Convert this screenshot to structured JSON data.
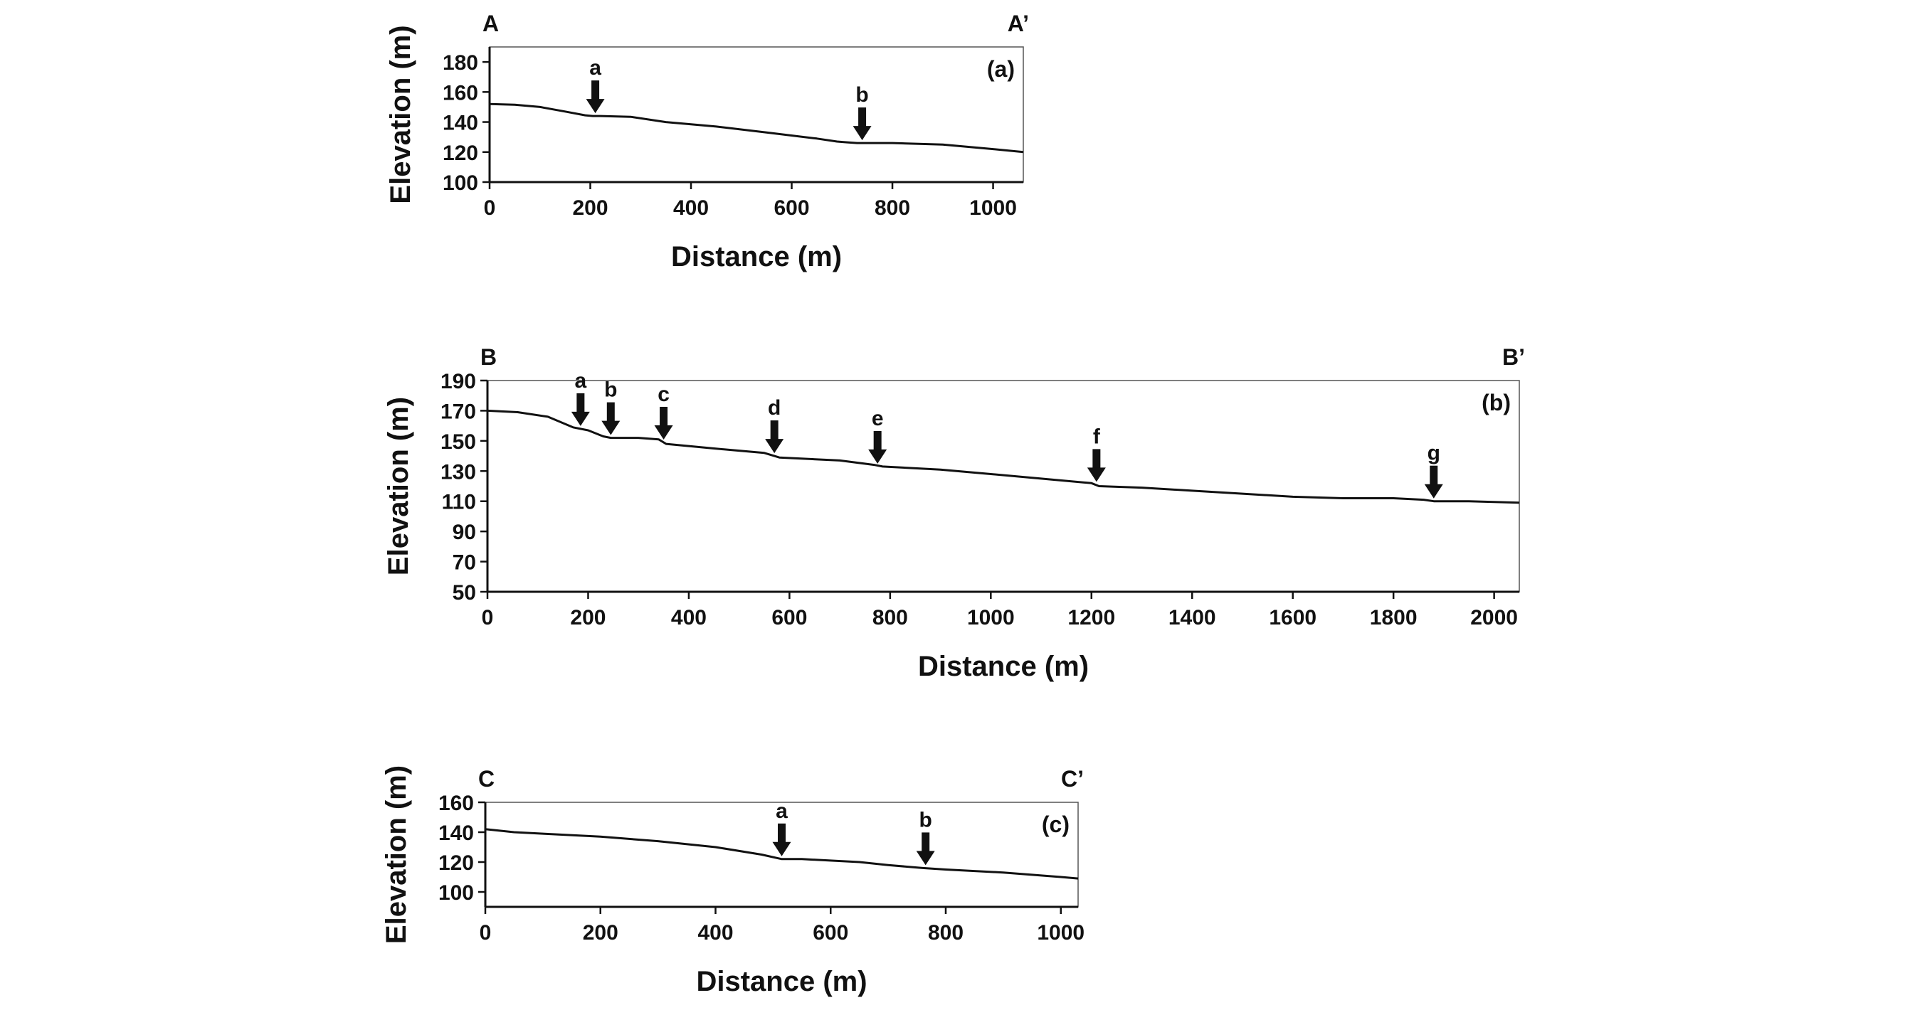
{
  "chart_data": [
    {
      "type": "line",
      "panel": "(a)",
      "start_label": "A",
      "end_label": "A’",
      "xlabel": "Distance (m)",
      "ylabel": "Elevation (m)",
      "xlim": [
        0,
        1060
      ],
      "ylim": [
        100,
        190
      ],
      "xticks": [
        0,
        200,
        400,
        600,
        800,
        1000
      ],
      "yticks": [
        100,
        120,
        140,
        160,
        180
      ],
      "x": [
        0,
        50,
        100,
        150,
        190,
        205,
        220,
        280,
        350,
        450,
        550,
        650,
        690,
        710,
        730,
        750,
        800,
        900,
        1000,
        1060
      ],
      "y": [
        152,
        151.5,
        150,
        147,
        144.5,
        144,
        144,
        143.5,
        140,
        137,
        133,
        129,
        127,
        126.5,
        126,
        126,
        126,
        125,
        122,
        120
      ],
      "markers": [
        {
          "label": "a",
          "x": 210,
          "y": 144
        },
        {
          "label": "b",
          "x": 740,
          "y": 126
        }
      ]
    },
    {
      "type": "line",
      "panel": "(b)",
      "start_label": "B",
      "end_label": "B’",
      "xlabel": "Distance (m)",
      "ylabel": "Elevation (m)",
      "xlim": [
        0,
        2050
      ],
      "ylim": [
        50,
        190
      ],
      "xticks": [
        0,
        200,
        400,
        600,
        800,
        1000,
        1200,
        1400,
        1600,
        1800,
        2000
      ],
      "yticks": [
        50,
        70,
        90,
        110,
        130,
        150,
        170,
        190
      ],
      "x": [
        0,
        60,
        120,
        170,
        200,
        230,
        245,
        300,
        340,
        355,
        450,
        550,
        570,
        580,
        700,
        770,
        785,
        900,
        1000,
        1100,
        1200,
        1215,
        1300,
        1400,
        1500,
        1600,
        1700,
        1800,
        1860,
        1880,
        1950,
        2050
      ],
      "y": [
        170,
        169,
        166,
        159,
        157,
        153,
        152,
        152,
        151,
        148,
        145,
        142,
        140,
        139,
        137,
        134,
        133,
        131,
        128,
        125,
        122,
        120,
        119,
        117,
        115,
        113,
        112,
        112,
        111,
        110,
        110,
        109
      ],
      "markers": [
        {
          "label": "a",
          "x": 185,
          "y": 158
        },
        {
          "label": "b",
          "x": 245,
          "y": 152
        },
        {
          "label": "c",
          "x": 350,
          "y": 149
        },
        {
          "label": "d",
          "x": 570,
          "y": 140
        },
        {
          "label": "e",
          "x": 775,
          "y": 133
        },
        {
          "label": "f",
          "x": 1210,
          "y": 121
        },
        {
          "label": "g",
          "x": 1880,
          "y": 110
        }
      ]
    },
    {
      "type": "line",
      "panel": "(c)",
      "start_label": "C",
      "end_label": "C’",
      "xlabel": "Distance (m)",
      "ylabel": "Elevation (m)",
      "xlim": [
        0,
        1030
      ],
      "ylim": [
        90,
        160
      ],
      "xticks": [
        0,
        200,
        400,
        600,
        800,
        1000
      ],
      "yticks": [
        100,
        120,
        140,
        160
      ],
      "x": [
        0,
        50,
        100,
        200,
        300,
        400,
        480,
        515,
        550,
        650,
        700,
        760,
        800,
        900,
        1000,
        1030
      ],
      "y": [
        142,
        140,
        139,
        137,
        134,
        130,
        125,
        122,
        122,
        120,
        118,
        116,
        115,
        113,
        110,
        109
      ],
      "markers": [
        {
          "label": "a",
          "x": 515,
          "y": 122
        },
        {
          "label": "b",
          "x": 765,
          "y": 116
        }
      ]
    }
  ]
}
